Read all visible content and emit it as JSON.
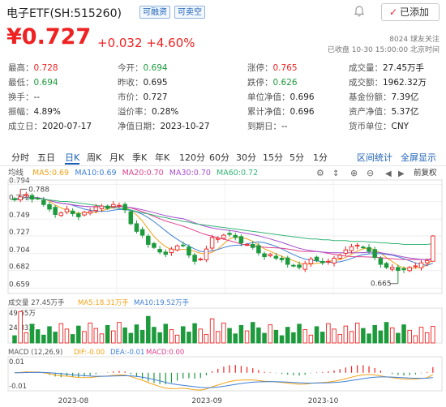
{
  "header": {
    "title": "电子ETF(SH:515260)",
    "tags": [
      "可融资",
      "可卖空"
    ],
    "follow_label": "已添加",
    "price": "¥0.727",
    "change": "+0.032 +4.60%",
    "followers": "8024  球友关注",
    "status": "已收盘  10-30 15:00:00 北京时间"
  },
  "stats": [
    [
      {
        "l": "最高：",
        "v": "0.728",
        "c": "red"
      },
      {
        "l": "今开：",
        "v": "0.694",
        "c": "grn"
      },
      {
        "l": "涨停：",
        "v": "0.765",
        "c": "red"
      },
      {
        "l": "成交量：",
        "v": "27.45万手",
        "c": "blk"
      }
    ],
    [
      {
        "l": "最低：",
        "v": "0.694",
        "c": "grn"
      },
      {
        "l": "昨收：",
        "v": "0.695",
        "c": "blk"
      },
      {
        "l": "跌停：",
        "v": "0.626",
        "c": "grn"
      },
      {
        "l": "成交额：",
        "v": "1962.32万",
        "c": "blk"
      }
    ],
    [
      {
        "l": "换手：",
        "v": "--",
        "c": "blk"
      },
      {
        "l": "市价：",
        "v": "0.727",
        "c": "blk"
      },
      {
        "l": "单位净值：",
        "v": "0.696",
        "c": "blk"
      },
      {
        "l": "基金份额：",
        "v": "7.39亿",
        "c": "blk"
      }
    ],
    [
      {
        "l": "振幅：",
        "v": "4.89%",
        "c": "blk"
      },
      {
        "l": "溢价率：",
        "v": "0.28%",
        "c": "blk"
      },
      {
        "l": "累计净值：",
        "v": "0.696",
        "c": "blk"
      },
      {
        "l": "资产净值：",
        "v": "5.37亿",
        "c": "blk"
      }
    ],
    [
      {
        "l": "成立日：",
        "v": "2020-07-17",
        "c": "blk"
      },
      {
        "l": "净值日期：",
        "v": "2023-10-27",
        "c": "blk"
      },
      {
        "l": "到期日：",
        "v": "--",
        "c": "blk"
      },
      {
        "l": "货币单位：",
        "v": "CNY",
        "c": "blk"
      }
    ]
  ],
  "tabs": [
    "分时",
    "五日",
    "日K",
    "周K",
    "月K",
    "季K",
    "年K",
    "120分",
    "60分",
    "30分",
    "15分",
    "5分",
    "1分"
  ],
  "active_tab": "日K",
  "tab_links": [
    "区间统计",
    "全屏显示"
  ],
  "chart_toolbar": {
    "label": "均线",
    "ma_labels": [
      "MA5:0.69",
      "MA10:0.69",
      "MA20:0.70",
      "MA30:0.70",
      "MA60:0.72"
    ],
    "right": "前复权"
  },
  "volume_toolbar": {
    "label": "成交量 27.45万手",
    "ma5": "MA5:18.31万手",
    "ma10": "MA10:19.52万手"
  },
  "macd_toolbar": {
    "label": "MACD (12,26,9)",
    "dif": "DIF:-0.00",
    "dea": "DEA:-0.01",
    "macd": "MACD:0.00"
  },
  "colors": {
    "up": "#e22",
    "down": "#1c9a3c",
    "ma5": "#f3a31a",
    "ma10": "#3e7fd6",
    "ma20": "#e0418f",
    "ma30": "#a84fd0",
    "ma60": "#35b575"
  },
  "chart_data": {
    "type": "candlestick",
    "price_axis": {
      "ticks": [
        0.794,
        0.772,
        0.749,
        0.727,
        0.704,
        0.682,
        0.659
      ],
      "ylim": [
        0.652,
        0.8
      ]
    },
    "annotations": {
      "high_label": "0.788",
      "low_label": "0.665"
    },
    "volume_axis": {
      "ticks_text": [
        "49.65万",
        "24.83万"
      ],
      "max": 55
    },
    "macd_axis": {
      "ticks_text": [
        "0.01",
        "-0.01"
      ],
      "ylim": [
        -0.018,
        0.016
      ]
    },
    "x_labels": [
      {
        "text": "2023-08",
        "index": 10
      },
      {
        "text": "2023-09",
        "index": 33
      },
      {
        "text": "2023-10",
        "index": 53
      }
    ],
    "closes": [
      0.774,
      0.778,
      0.781,
      0.775,
      0.776,
      0.768,
      0.762,
      0.755,
      0.757,
      0.762,
      0.756,
      0.752,
      0.758,
      0.759,
      0.765,
      0.766,
      0.763,
      0.768,
      0.767,
      0.761,
      0.743,
      0.733,
      0.728,
      0.716,
      0.712,
      0.706,
      0.703,
      0.71,
      0.714,
      0.715,
      0.702,
      0.694,
      0.697,
      0.71,
      0.725,
      0.724,
      0.728,
      0.729,
      0.725,
      0.718,
      0.716,
      0.712,
      0.705,
      0.7,
      0.703,
      0.698,
      0.696,
      0.69,
      0.688,
      0.686,
      0.691,
      0.697,
      0.695,
      0.692,
      0.694,
      0.698,
      0.702,
      0.709,
      0.713,
      0.715,
      0.712,
      0.707,
      0.699,
      0.69,
      0.686,
      0.686,
      0.682,
      0.683,
      0.686,
      0.688,
      0.692,
      0.695,
      0.727
    ],
    "ma60": [
      0.776,
      0.776,
      0.777,
      0.776,
      0.776,
      0.775,
      0.774,
      0.773,
      0.772,
      0.772,
      0.771,
      0.77,
      0.769,
      0.768,
      0.767,
      0.766,
      0.765,
      0.764,
      0.763,
      0.762,
      0.761,
      0.759,
      0.757,
      0.756,
      0.754,
      0.752,
      0.751,
      0.749,
      0.748,
      0.746,
      0.745,
      0.743,
      0.742,
      0.741,
      0.74,
      0.739,
      0.738,
      0.737,
      0.736,
      0.735,
      0.734,
      0.733,
      0.732,
      0.731,
      0.73,
      0.729,
      0.728,
      0.727,
      0.726,
      0.725,
      0.724,
      0.723,
      0.723,
      0.722,
      0.722,
      0.721,
      0.721,
      0.721,
      0.72,
      0.72,
      0.72,
      0.719,
      0.719,
      0.718,
      0.718,
      0.717,
      0.717,
      0.716,
      0.716,
      0.716,
      0.716,
      0.716,
      0.717
    ]
  }
}
